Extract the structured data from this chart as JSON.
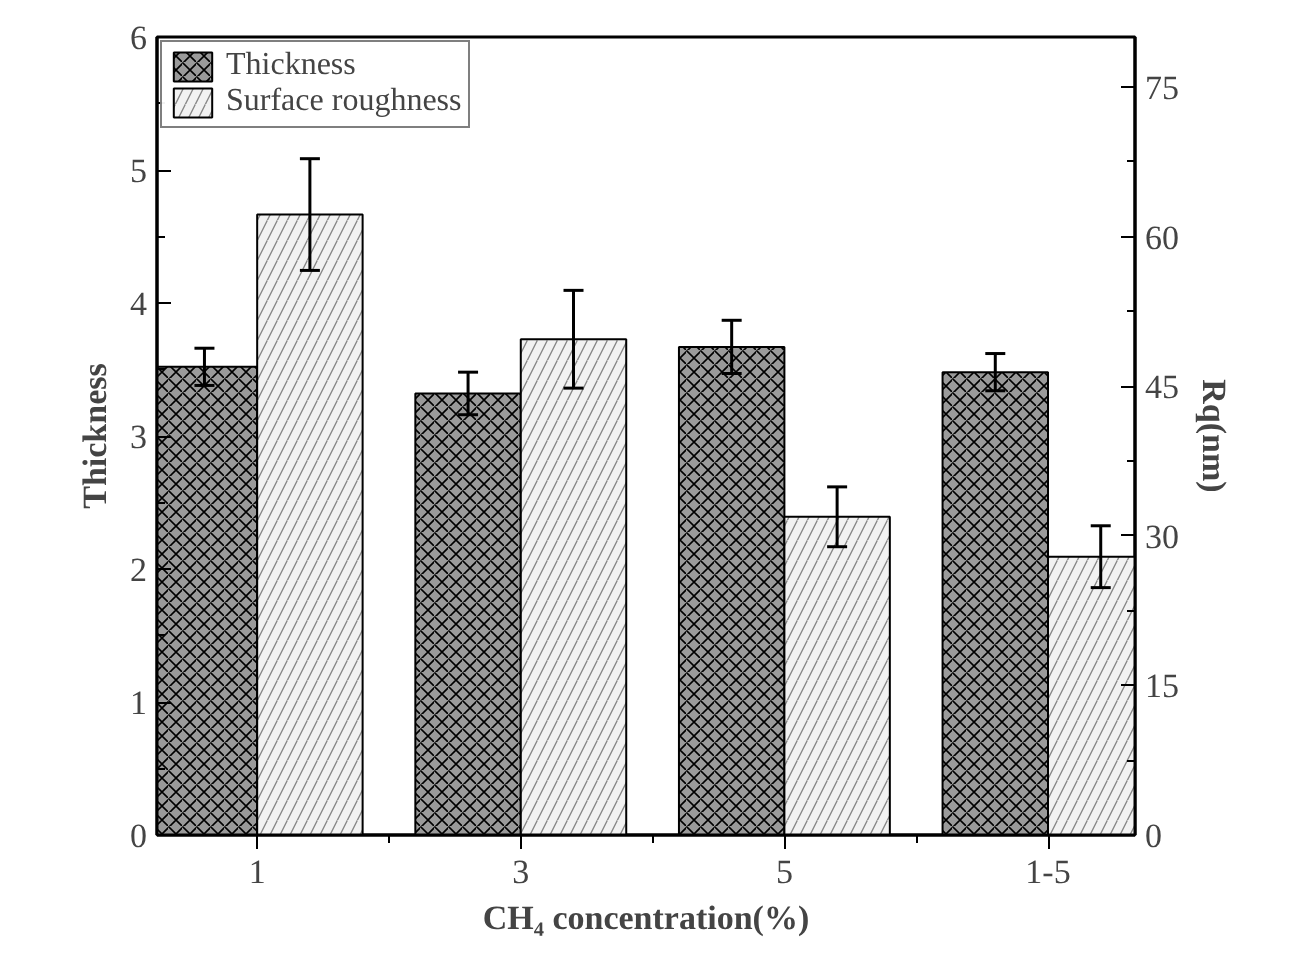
{
  "chart_data": {
    "type": "bar",
    "xlabel": "CH₄ concentration(%)",
    "ylabel": "Thickness",
    "y2label": "Rq(nm)",
    "categories": [
      "1",
      "3",
      "5",
      "1-5"
    ],
    "series": [
      {
        "name": "Thickness",
        "color": "#9a9a9a",
        "values": [
          3.52,
          3.32,
          3.67,
          3.48
        ],
        "errors": [
          0.14,
          0.16,
          0.2,
          0.14
        ]
      },
      {
        "name": "Surface roughness",
        "color": "#f2f2f2",
        "axis": "y2",
        "values": [
          62.2,
          49.7,
          31.9,
          27.9
        ],
        "errors": [
          5.6,
          4.9,
          3.0,
          3.1
        ]
      }
    ],
    "ylim": [
      0,
      6
    ],
    "yticks": [
      0,
      1,
      2,
      3,
      4,
      5,
      6
    ],
    "y2lim": [
      0,
      80
    ],
    "y2ticks": [
      0,
      15,
      30,
      45,
      60,
      75
    ],
    "legend": "top left",
    "grid": false
  }
}
